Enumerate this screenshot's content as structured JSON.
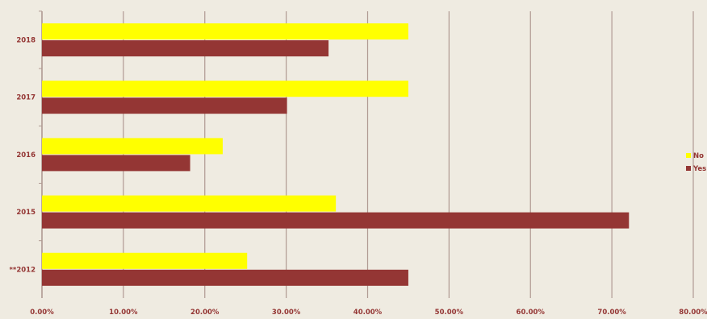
{
  "colors": {
    "background": "#efebe1",
    "gridline": "#b09a92",
    "axis": "#b09a92",
    "text": "#943634"
  },
  "chart_data": {
    "type": "bar",
    "orientation": "horizontal",
    "categories": [
      "2018",
      "2017",
      "2016",
      "2015",
      "**2012"
    ],
    "series": [
      {
        "name": "No",
        "color": "#ffff00",
        "values": [
          45.0,
          45.0,
          22.2,
          36.1,
          25.2
        ]
      },
      {
        "name": "Yes",
        "color": "#943634",
        "values": [
          35.2,
          30.1,
          18.2,
          72.1,
          45.0
        ]
      }
    ],
    "xlim": [
      0,
      80
    ],
    "x_ticks": [
      "0.00%",
      "10.00%",
      "20.00%",
      "30.00%",
      "40.00%",
      "50.00%",
      "60.00%",
      "70.00%",
      "80.00%"
    ],
    "grid": "vertical",
    "legend_position": "right"
  }
}
